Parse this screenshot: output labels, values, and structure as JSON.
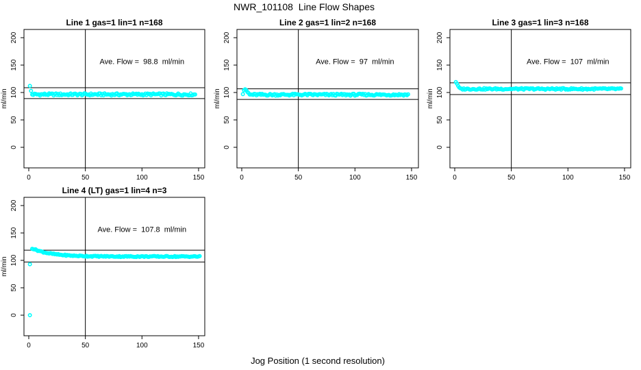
{
  "page": {
    "title": "NWR_101108  Line Flow Shapes",
    "xlabel": "Jog Position (1 second resolution)"
  },
  "colors": {
    "point": "#00FFFF",
    "axis": "#000000",
    "background": "#FFFFFF"
  },
  "chart_data": [
    {
      "type": "scatter",
      "title": "Line 1 gas=1 lin=1 n=168",
      "annotation": "Ave. Flow =  98.8  ml/min",
      "ave_flow_ml_min": 98.8,
      "n": 168,
      "ylabel": "ml/min",
      "x_ticks": [
        0,
        50,
        100,
        150
      ],
      "y_ticks": [
        0,
        50,
        100,
        150,
        200
      ],
      "ylim": [
        -37,
        215
      ],
      "xlim": [
        -4,
        155
      ],
      "vline_x": 50,
      "hlines": [
        108.7,
        88.9
      ],
      "annotation_pos": [
        100,
        152
      ],
      "grid": {
        "row": 0,
        "col": 0
      },
      "series": {
        "name": "line1-flow",
        "steady": 96.5,
        "jitter": 2,
        "x_start": 3,
        "x_end": 147,
        "lead_points": [
          [
            1,
            112
          ],
          [
            2,
            103
          ]
        ],
        "outliers": []
      }
    },
    {
      "type": "scatter",
      "title": "Line 2 gas=1 lin=2 n=168",
      "annotation": "Ave. Flow =  97  ml/min",
      "ave_flow_ml_min": 97,
      "n": 168,
      "ylabel": "ml/min",
      "x_ticks": [
        0,
        50,
        100,
        150
      ],
      "y_ticks": [
        0,
        50,
        100,
        150,
        200
      ],
      "ylim": [
        -37,
        215
      ],
      "xlim": [
        -4,
        155
      ],
      "vline_x": 50,
      "hlines": [
        106.7,
        87.3
      ],
      "annotation_pos": [
        100,
        152
      ],
      "grid": {
        "row": 0,
        "col": 1
      },
      "series": {
        "name": "line2-flow",
        "steady": 96,
        "jitter": 1.8,
        "x_start": 7,
        "x_end": 147,
        "lead_points": [
          [
            1,
            97
          ],
          [
            2,
            104
          ],
          [
            3,
            106
          ],
          [
            4,
            104
          ],
          [
            5,
            101
          ],
          [
            6,
            99
          ]
        ],
        "outliers": []
      }
    },
    {
      "type": "scatter",
      "title": "Line 3 gas=1 lin=3 n=168",
      "annotation": "Ave. Flow =  107  ml/min",
      "ave_flow_ml_min": 107,
      "n": 168,
      "ylabel": "ml/min",
      "x_ticks": [
        0,
        50,
        100,
        150
      ],
      "y_ticks": [
        0,
        50,
        100,
        150,
        200
      ],
      "ylim": [
        -37,
        215
      ],
      "xlim": [
        -4,
        155
      ],
      "vline_x": 50,
      "hlines": [
        117.7,
        96.3
      ],
      "annotation_pos": [
        100,
        152
      ],
      "grid": {
        "row": 0,
        "col": 2
      },
      "series": {
        "name": "line3-flow",
        "steady": 106.5,
        "jitter": 1.5,
        "x_start": 5,
        "x_end": 147,
        "lead_points": [
          [
            1,
            119
          ],
          [
            2,
            116
          ],
          [
            3,
            112
          ],
          [
            4,
            109
          ]
        ],
        "outliers": []
      }
    },
    {
      "type": "scatter",
      "title": "Line 4 (LT) gas=1 lin=4 n=3",
      "annotation": "Ave. Flow =  107.8  ml/min",
      "ave_flow_ml_min": 107.8,
      "n": 3,
      "ylabel": "ml/min",
      "x_ticks": [
        0,
        50,
        100,
        150
      ],
      "y_ticks": [
        0,
        50,
        100,
        150,
        200
      ],
      "ylim": [
        -37,
        215
      ],
      "xlim": [
        -4,
        155
      ],
      "vline_x": 50,
      "hlines": [
        118.6,
        97.0
      ],
      "annotation_pos": [
        100,
        152
      ],
      "grid": {
        "row": 1,
        "col": 0
      },
      "series": {
        "name": "line4-flow",
        "steady": 107,
        "jitter": 1,
        "x_start": 3,
        "x_end": 151,
        "decay": {
          "amplitude": 15,
          "tau": 16
        },
        "lead_points": [],
        "outliers": [
          [
            1,
            0
          ],
          [
            1,
            93
          ]
        ]
      }
    }
  ]
}
